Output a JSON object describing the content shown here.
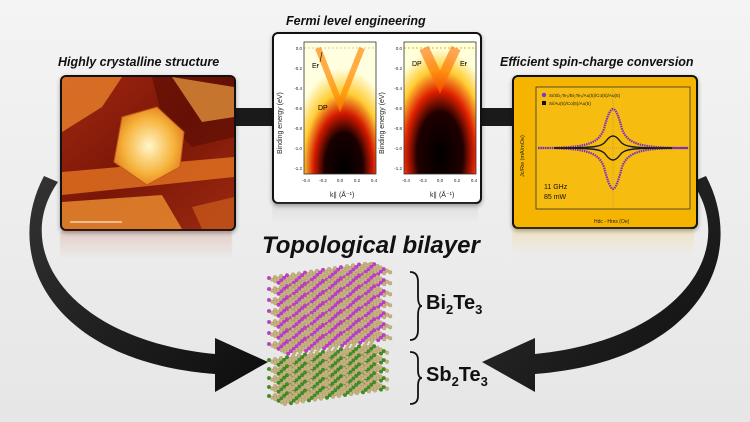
{
  "headline": "Topological bilayer",
  "panels": {
    "left": {
      "caption": "Highly crystalline structure"
    },
    "center": {
      "caption": "Fermi level engineering",
      "y_axis_label": "Binding energy (eV)",
      "x_axis_label": "k∥ (Å⁻¹)",
      "left_plot": {
        "ef_label": "Eғ",
        "dp_label": "DP"
      },
      "right_plot": {
        "ef_label": "Eғ",
        "dp_label": "DP"
      },
      "y_ticks": [
        "0.0",
        "-0.2",
        "-0.4",
        "-0.6",
        "-0.8",
        "-1.0",
        "-1.2"
      ],
      "x_ticks": [
        "-0.4",
        "-0.2",
        "0.0",
        "0.2",
        "0.4"
      ]
    },
    "right": {
      "caption": "Efficient spin-charge conversion",
      "legend": [
        "Si/Sb₂Te₃/Bi₂Te₃/Au(5)/Co(5)/Au(5)",
        "Si/Au(5)/Co(5)/Au(5)"
      ],
      "annotation_line1": "11 GHz",
      "annotation_line2": "85 mW",
      "y_axis_label": "Jc/Rw (mA/mOe)",
      "x_axis_label": "Hdc - Hres (Oe)"
    }
  },
  "layers": {
    "top": {
      "base": "Bi",
      "sub1": "2",
      "mid": "Te",
      "sub2": "3"
    },
    "bottom": {
      "base": "Sb",
      "sub1": "2",
      "mid": "Te",
      "sub2": "3"
    }
  },
  "colors": {
    "bi2te3_atoms": "#c23ad0",
    "sb2te3_atoms": "#3f8f1f",
    "te_atoms": "#c9b27a",
    "panel_right_bg": "#f5b400",
    "arrow": "#1a1a1a"
  }
}
